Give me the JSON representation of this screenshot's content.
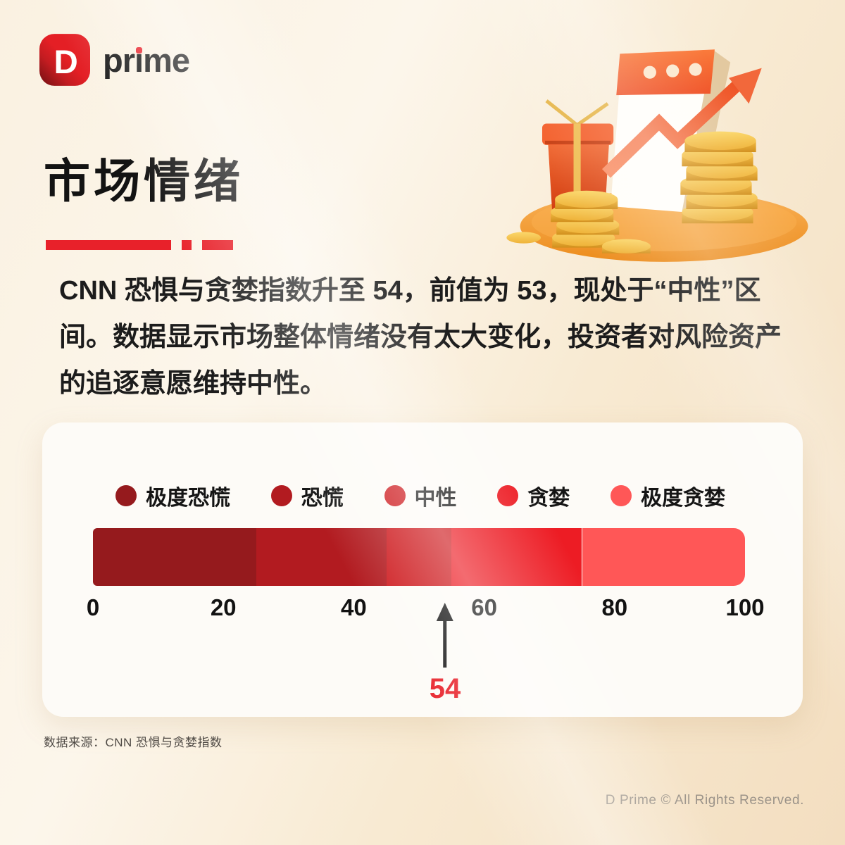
{
  "page": {
    "bg_light": "#FBF5E9",
    "bg_dark": "#F3DEC0",
    "accent": "#E8212A"
  },
  "logo": {
    "mark_letter": "D",
    "mark_color": "#E41F25",
    "word_pre": "pr",
    "word_i": "ı",
    "word_post": "me"
  },
  "hero_icons": [
    "calendar-icon",
    "trend-arrow-icon",
    "gift-box-icon",
    "coin-stacks-icon",
    "podium-icon"
  ],
  "header": {
    "title": "市场情绪"
  },
  "intro": {
    "text": "CNN 恐惧与贪婪指数升至 54，前值为 53，现处于“中性”区间。数据显示市场整体情绪没有太大变化，投资者对风险资产的追逐意愿维持中性。"
  },
  "chart_data": {
    "type": "bar",
    "orientation": "horizontal",
    "xlim": [
      0,
      100
    ],
    "ticks": [
      0,
      20,
      40,
      60,
      80,
      100
    ],
    "grid": false,
    "legend_position": "top",
    "segments": [
      {
        "label": "极度恐慌",
        "range": [
          0,
          25
        ],
        "color": "#951A1D"
      },
      {
        "label": "恐慌",
        "range": [
          25,
          45
        ],
        "color": "#B21B20"
      },
      {
        "label": "中性",
        "range": [
          45,
          55
        ],
        "color": "#CE1B1F"
      },
      {
        "label": "贪婪",
        "range": [
          55,
          75
        ],
        "color": "#ED1C24"
      },
      {
        "label": "极度贪婪",
        "range": [
          75,
          100
        ],
        "color": "#FF5757"
      }
    ],
    "marker": {
      "value": 54,
      "label": "54",
      "color": "#E8212A"
    }
  },
  "footer": {
    "source": "数据来源：CNN 恐惧与贪婪指数",
    "copyright": "D Prime © All Rights Reserved."
  }
}
